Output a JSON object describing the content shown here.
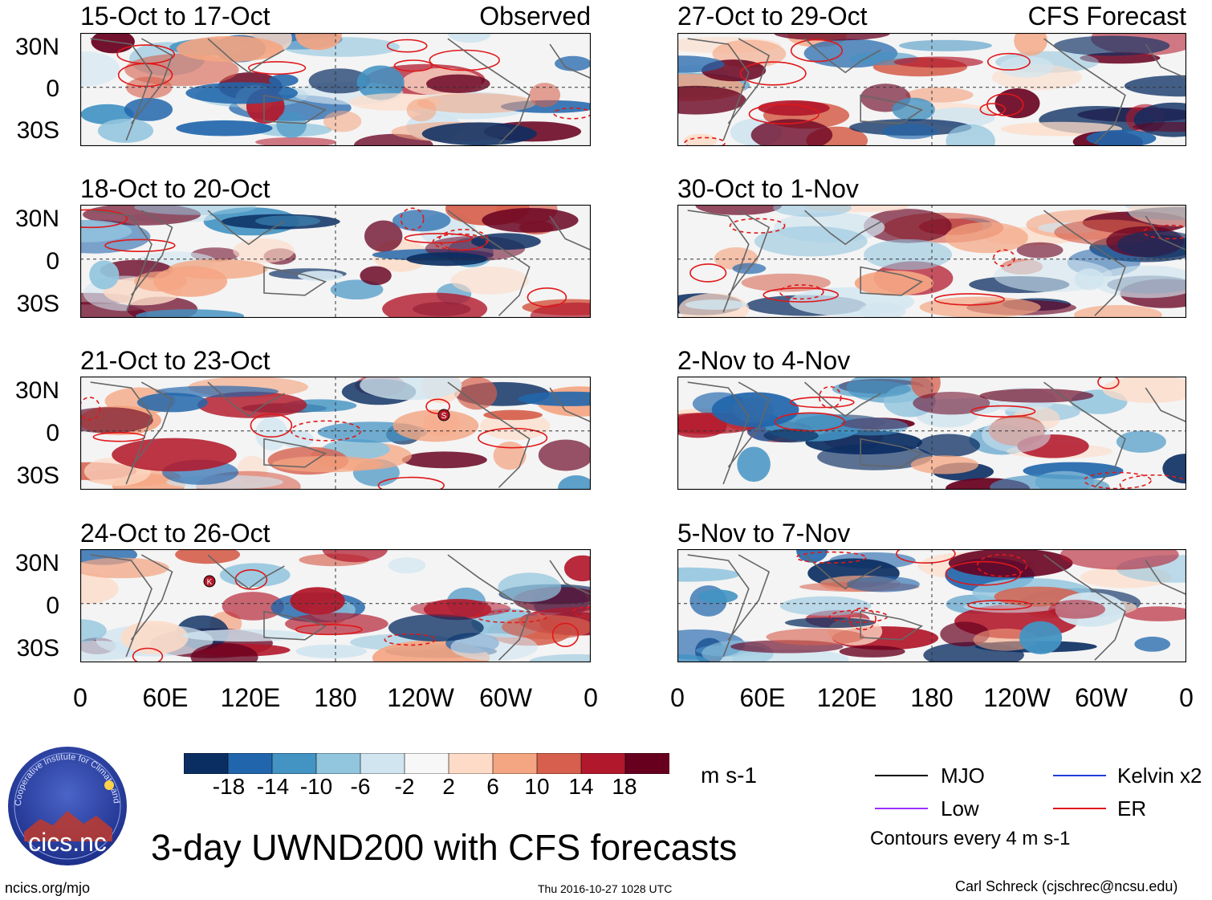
{
  "panels": {
    "left": [
      {
        "title": "15-Oct to 17-Oct",
        "tag": "Observed"
      },
      {
        "title": "18-Oct to 20-Oct",
        "tag": ""
      },
      {
        "title": "21-Oct to 23-Oct",
        "tag": ""
      },
      {
        "title": "24-Oct to 26-Oct",
        "tag": ""
      }
    ],
    "right": [
      {
        "title": "27-Oct to 29-Oct",
        "tag": "CFS Forecast"
      },
      {
        "title": "30-Oct to 1-Nov",
        "tag": ""
      },
      {
        "title": "2-Nov to 4-Nov",
        "tag": ""
      },
      {
        "title": "5-Nov to 7-Nov",
        "tag": ""
      }
    ]
  },
  "axes": {
    "lat_labels": [
      "30N",
      "0",
      "30S"
    ],
    "lon_labels": [
      "0",
      "60E",
      "120E",
      "180",
      "120W",
      "60W",
      "0"
    ]
  },
  "storm_markers": {
    "panel3": "S",
    "panel4": "K"
  },
  "colorbar": {
    "ticks": [
      "-18",
      "-14",
      "-10",
      "-6",
      "-2",
      "2",
      "6",
      "10",
      "14",
      "18"
    ],
    "units": "m s-1",
    "colors": [
      "#0b2e62",
      "#2166ac",
      "#4393c3",
      "#92c5de",
      "#d1e5f0",
      "#f7f7f7",
      "#fddbc7",
      "#f4a582",
      "#d6604d",
      "#b2182b",
      "#67001f"
    ]
  },
  "legend": {
    "mjo": {
      "label": "MJO",
      "color": "#000000"
    },
    "kelvin": {
      "label": "Kelvin x2",
      "color": "#1f3fd6"
    },
    "low": {
      "label": "Low",
      "color": "#9b30ff"
    },
    "er": {
      "label": "ER",
      "color": "#e0181a"
    },
    "note": "Contours every 4 m s-1"
  },
  "logo": {
    "text": "cics.nc",
    "ring_text": "Cooperative Institute for Climate and Satellites"
  },
  "footer": {
    "main_title": "3-day UWND200 with CFS forecasts",
    "url": "ncics.org/mjo",
    "timestamp": "Thu 2016-10-27 1028 UTC",
    "credit": "Carl Schreck (cjschrec@ncsu.edu)"
  }
}
